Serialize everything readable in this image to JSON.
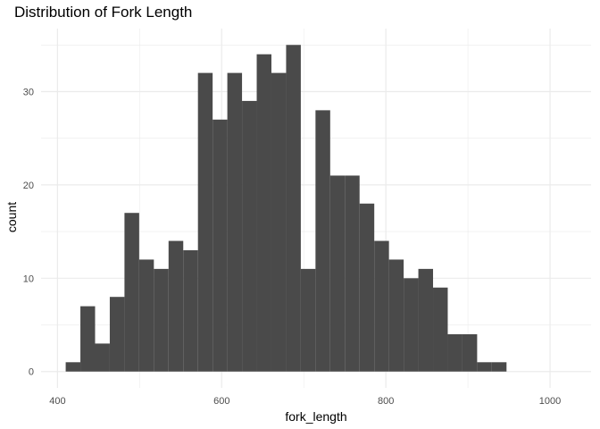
{
  "chart_data": {
    "type": "bar",
    "title": "Distribution of Fork Length",
    "xlabel": "fork_length",
    "ylabel": "count",
    "bin_width": 17.9,
    "bins": [
      {
        "start": 410.0,
        "count": 1
      },
      {
        "start": 427.9,
        "count": 7
      },
      {
        "start": 445.8,
        "count": 3
      },
      {
        "start": 463.7,
        "count": 8
      },
      {
        "start": 481.6,
        "count": 17
      },
      {
        "start": 499.5,
        "count": 12
      },
      {
        "start": 517.4,
        "count": 11
      },
      {
        "start": 535.3,
        "count": 14
      },
      {
        "start": 553.2,
        "count": 13
      },
      {
        "start": 571.1,
        "count": 32
      },
      {
        "start": 589.0,
        "count": 27
      },
      {
        "start": 606.9,
        "count": 32
      },
      {
        "start": 624.8,
        "count": 29
      },
      {
        "start": 642.7,
        "count": 34
      },
      {
        "start": 660.6,
        "count": 32
      },
      {
        "start": 678.5,
        "count": 35
      },
      {
        "start": 696.4,
        "count": 11
      },
      {
        "start": 714.3,
        "count": 28
      },
      {
        "start": 732.2,
        "count": 21
      },
      {
        "start": 750.1,
        "count": 21
      },
      {
        "start": 768.0,
        "count": 18
      },
      {
        "start": 785.9,
        "count": 14
      },
      {
        "start": 803.8,
        "count": 12
      },
      {
        "start": 821.7,
        "count": 10
      },
      {
        "start": 839.6,
        "count": 11
      },
      {
        "start": 857.5,
        "count": 9
      },
      {
        "start": 875.4,
        "count": 4
      },
      {
        "start": 893.3,
        "count": 4
      },
      {
        "start": 911.2,
        "count": 1
      },
      {
        "start": 929.1,
        "count": 1
      }
    ],
    "xlim": [
      380,
      1050
    ],
    "ylim": [
      -1.75,
      36.75
    ],
    "x_ticks": [
      400,
      600,
      800,
      1000
    ],
    "x_minor_ticks": [
      300,
      500,
      700,
      900
    ],
    "y_ticks": [
      0,
      10,
      20,
      30
    ],
    "y_minor_ticks": [
      5,
      15,
      25,
      35
    ],
    "bar_color": "#4a4a4a",
    "grid_color": "#ebebeb",
    "grid": true,
    "legend": "none"
  }
}
